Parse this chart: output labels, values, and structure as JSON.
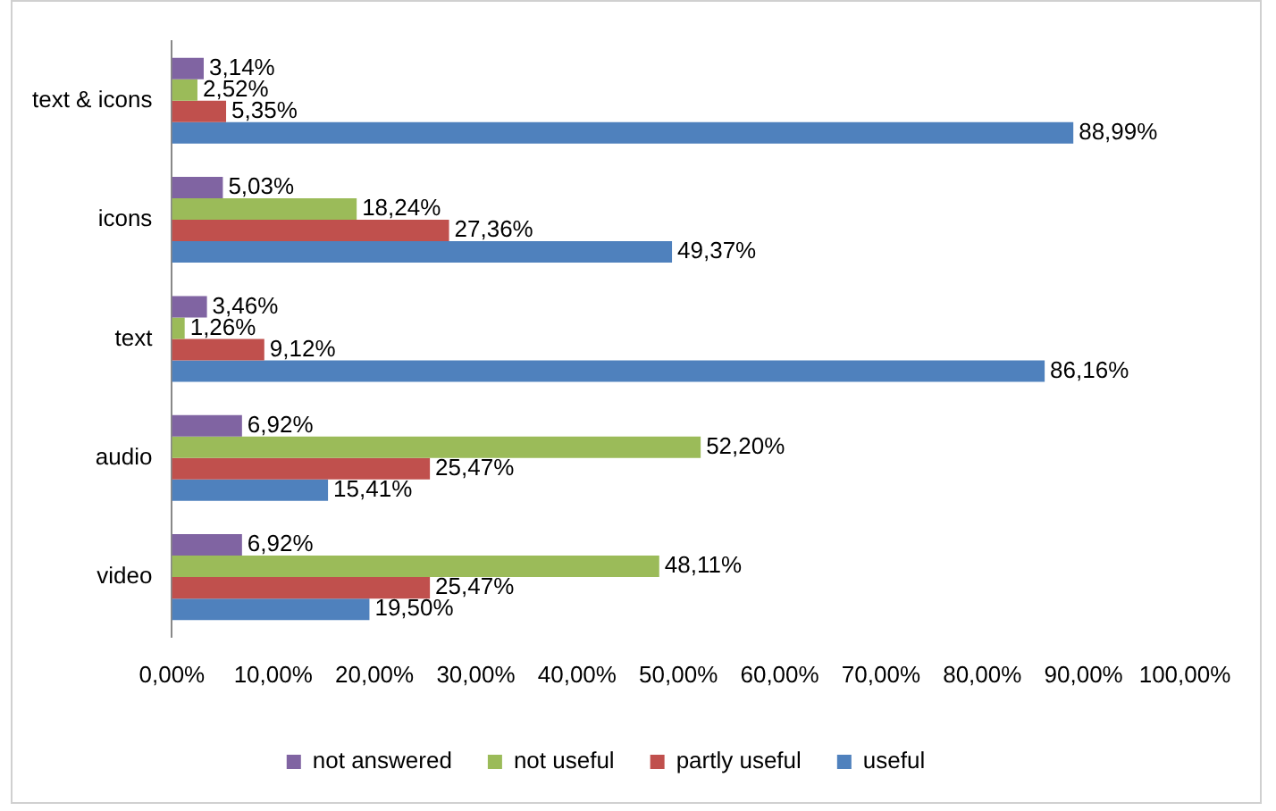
{
  "chart_data": {
    "type": "bar",
    "orientation": "horizontal",
    "categories": [
      "text & icons",
      "icons",
      "text",
      "audio",
      "video"
    ],
    "series": [
      {
        "name": "not answered",
        "color": "#8064a2",
        "values": [
          3.14,
          5.03,
          3.46,
          6.92,
          6.92
        ],
        "value_labels": [
          "3,14%",
          "5,03%",
          "3,46%",
          "6,92%",
          "6,92%"
        ]
      },
      {
        "name": "not useful",
        "color": "#9bbb59",
        "values": [
          2.52,
          18.24,
          1.26,
          52.2,
          48.11
        ],
        "value_labels": [
          "2,52%",
          "18,24%",
          "1,26%",
          "52,20%",
          "48,11%"
        ]
      },
      {
        "name": "partly useful",
        "color": "#c0504d",
        "values": [
          5.35,
          27.36,
          9.12,
          25.47,
          25.47
        ],
        "value_labels": [
          "5,35%",
          "27,36%",
          "9,12%",
          "25,47%",
          "25,47%"
        ]
      },
      {
        "name": "useful",
        "color": "#4f81bd",
        "values": [
          88.99,
          49.37,
          86.16,
          15.41,
          19.5
        ],
        "value_labels": [
          "88,99%",
          "49,37%",
          "86,16%",
          "15,41%",
          "19,50%"
        ]
      }
    ],
    "xlim": [
      0,
      100
    ],
    "xticks": [
      {
        "value": 0,
        "label": "0,00%"
      },
      {
        "value": 10,
        "label": "10,00%"
      },
      {
        "value": 20,
        "label": "20,00%"
      },
      {
        "value": 30,
        "label": "30,00%"
      },
      {
        "value": 40,
        "label": "40,00%"
      },
      {
        "value": 50,
        "label": "50,00%"
      },
      {
        "value": 60,
        "label": "60,00%"
      },
      {
        "value": 70,
        "label": "70,00%"
      },
      {
        "value": 80,
        "label": "80,00%"
      },
      {
        "value": 90,
        "label": "90,00%"
      },
      {
        "value": 100,
        "label": "100,00%"
      }
    ],
    "grid": false,
    "legend": "bottom"
  }
}
